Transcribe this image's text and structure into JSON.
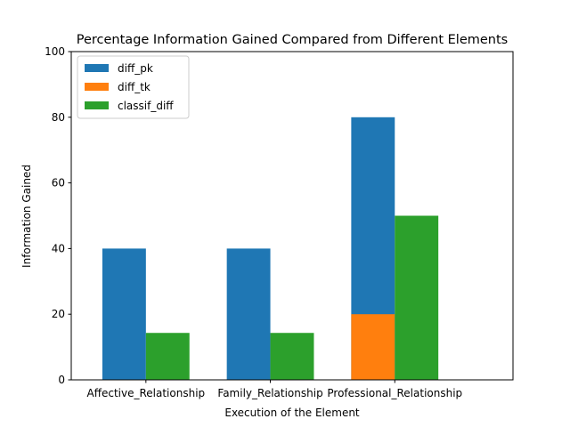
{
  "chart_data": {
    "type": "bar",
    "title": "Percentage Information Gained Compared from Different Elements",
    "xlabel": "Execution of the Element",
    "ylabel": "Information Gained",
    "categories": [
      "Affective_Relationship",
      "Family_Relationship",
      "Professional_Relationship"
    ],
    "ylim": [
      0,
      100
    ],
    "yticks": [
      0,
      20,
      40,
      60,
      80,
      100
    ],
    "grid": false,
    "legend_position": "upper-left",
    "series": [
      {
        "name": "diff_pk",
        "values": [
          40,
          40,
          80
        ],
        "color": "#1f77b4",
        "slot": "left"
      },
      {
        "name": "diff_tk",
        "values": [
          0,
          0,
          20
        ],
        "color": "#ff7f0e",
        "slot": "left"
      },
      {
        "name": "classif_diff",
        "values": [
          14.3,
          14.3,
          50
        ],
        "color": "#2ca02c",
        "slot": "right"
      }
    ]
  }
}
